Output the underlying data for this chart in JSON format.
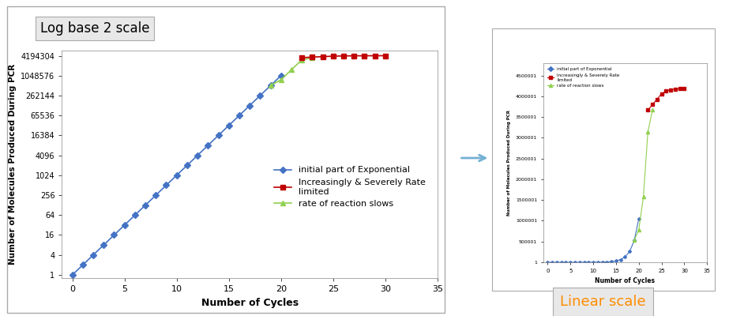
{
  "cycles_blue": [
    0,
    1,
    2,
    3,
    4,
    5,
    6,
    7,
    8,
    9,
    10,
    11,
    12,
    13,
    14,
    15,
    16,
    17,
    18,
    19,
    20
  ],
  "values_blue": [
    1,
    2,
    4,
    8,
    16,
    32,
    64,
    128,
    256,
    512,
    1024,
    2048,
    4096,
    8192,
    16384,
    32768,
    65536,
    131072,
    262144,
    524288,
    1048576
  ],
  "cycles_green": [
    19,
    20,
    21,
    22,
    23
  ],
  "values_green": [
    524288,
    786432,
    1572864,
    3145728,
    3670016
  ],
  "cycles_red": [
    22,
    23,
    24,
    25,
    26,
    27,
    28,
    29,
    30
  ],
  "values_red": [
    3670016,
    3801088,
    3932160,
    4063232,
    4128768,
    4161536,
    4177920,
    4186112,
    4194304
  ],
  "yticks_log": [
    1,
    4,
    16,
    64,
    256,
    1024,
    4096,
    16384,
    65536,
    262144,
    1048576,
    4194304
  ],
  "ytick_labels_log": [
    "1",
    "4",
    "16",
    "64",
    "256",
    "1024",
    "4096",
    "16384",
    "65536",
    "262144",
    "1048576",
    "4194304"
  ],
  "xlabel": "Number of Cycles",
  "ylabel": "Number of Molecules Produced During PCR",
  "color_blue": "#4472C4",
  "color_green": "#92D050",
  "color_red": "#C00000",
  "legend_blue": "initial part of Exponential",
  "legend_green": "rate of reaction slows",
  "legend_red": "Increasingly & Severely Rate\nlimited",
  "title_left": "Log base 2 scale",
  "title_right": "Linear scale",
  "arrow_color": "#74B0D4",
  "box_bg": "#E8E8E8",
  "outer_border_color": "#AAAAAA",
  "linear_scale_color": "#FF8C00"
}
